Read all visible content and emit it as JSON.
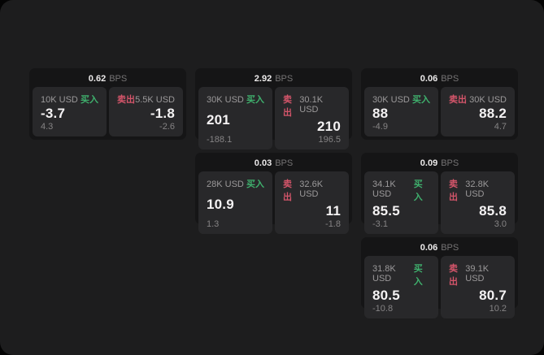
{
  "labels": {
    "bps_unit": "BPS",
    "buy": "买入",
    "sell": "卖出"
  },
  "colors": {
    "window_bg": "#1d1d1e",
    "card_bg": "#151516",
    "tile_bg": "#28282a",
    "buy_green": "#3fb06d",
    "sell_red": "#d4556a"
  },
  "cards": [
    {
      "bps": "0.62",
      "buy": {
        "amount": "10K USD",
        "value": "-3.7",
        "delta": "4.3"
      },
      "sell": {
        "amount": "5.5K USD",
        "value": "-1.8",
        "delta": "-2.6"
      }
    },
    {
      "bps": "2.92",
      "buy": {
        "amount": "30K USD",
        "value": "201",
        "delta": "-188.1"
      },
      "sell": {
        "amount": "30.1K USD",
        "value": "210",
        "delta": "196.5"
      }
    },
    {
      "bps": "0.06",
      "buy": {
        "amount": "30K USD",
        "value": "88",
        "delta": "-4.9"
      },
      "sell": {
        "amount": "30K USD",
        "value": "88.2",
        "delta": "4.7"
      }
    },
    {
      "bps": "0.03",
      "buy": {
        "amount": "28K USD",
        "value": "10.9",
        "delta": "1.3"
      },
      "sell": {
        "amount": "32.6K USD",
        "value": "11",
        "delta": "-1.8"
      }
    },
    {
      "bps": "0.09",
      "buy": {
        "amount": "34.1K USD",
        "value": "85.5",
        "delta": "-3.1"
      },
      "sell": {
        "amount": "32.8K USD",
        "value": "85.8",
        "delta": "3.0"
      }
    },
    {
      "bps": "0.06",
      "buy": {
        "amount": "31.8K USD",
        "value": "80.5",
        "delta": "-10.8"
      },
      "sell": {
        "amount": "39.1K USD",
        "value": "80.7",
        "delta": "10.2"
      }
    }
  ]
}
